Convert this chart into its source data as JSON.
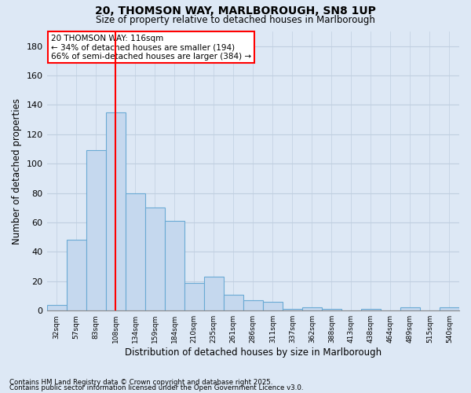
{
  "title1": "20, THOMSON WAY, MARLBOROUGH, SN8 1UP",
  "title2": "Size of property relative to detached houses in Marlborough",
  "xlabel": "Distribution of detached houses by size in Marlborough",
  "ylabel": "Number of detached properties",
  "categories": [
    "32sqm",
    "57sqm",
    "83sqm",
    "108sqm",
    "134sqm",
    "159sqm",
    "184sqm",
    "210sqm",
    "235sqm",
    "261sqm",
    "286sqm",
    "311sqm",
    "337sqm",
    "362sqm",
    "388sqm",
    "413sqm",
    "438sqm",
    "464sqm",
    "489sqm",
    "515sqm",
    "540sqm"
  ],
  "values": [
    4,
    48,
    109,
    135,
    80,
    70,
    61,
    19,
    23,
    11,
    7,
    6,
    1,
    2,
    1,
    0,
    1,
    0,
    2,
    0,
    2
  ],
  "bar_color": "#c5d8ee",
  "bar_edge_color": "#6aaad4",
  "vline_x": 3.0,
  "vline_color": "red",
  "annotation_title": "20 THOMSON WAY: 116sqm",
  "annotation_line1": "← 34% of detached houses are smaller (194)",
  "annotation_line2": "66% of semi-detached houses are larger (384) →",
  "annotation_box_color": "white",
  "annotation_box_edge": "red",
  "ylim": [
    0,
    190
  ],
  "yticks": [
    0,
    20,
    40,
    60,
    80,
    100,
    120,
    140,
    160,
    180
  ],
  "footnote1": "Contains HM Land Registry data © Crown copyright and database right 2025.",
  "footnote2": "Contains public sector information licensed under the Open Government Licence v3.0.",
  "bg_color": "#dde8f5",
  "plot_bg_color": "#dde8f5",
  "grid_color": "#c0cfe0"
}
